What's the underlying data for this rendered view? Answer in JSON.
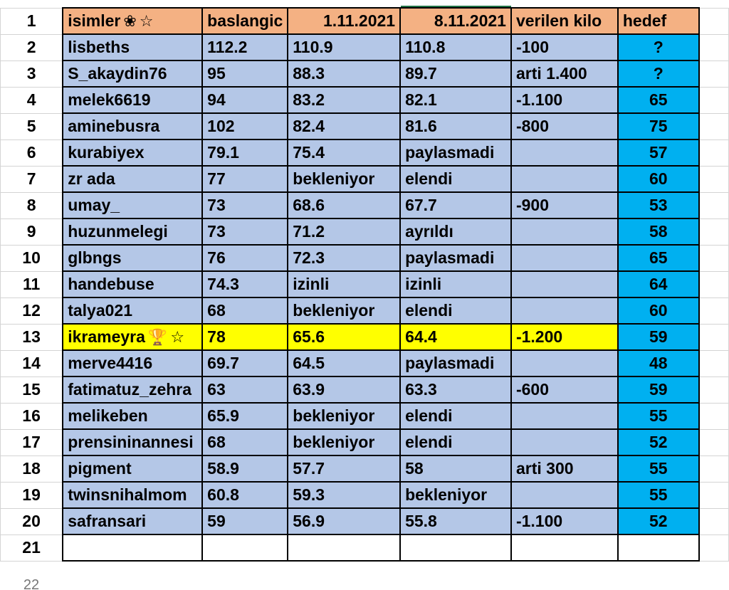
{
  "headers": {
    "names": "isimler",
    "names_icons": [
      "flower-icon",
      "star-icon"
    ],
    "start": "baslangic",
    "date1": "1.11.2021",
    "date2": "8.11.2021",
    "lost": "verilen kilo",
    "goal": "hedef"
  },
  "glyphs": {
    "flower": "❀",
    "star": "☆",
    "trophy": "🏆"
  },
  "rows": [
    {
      "name": "lisbeths",
      "start": "112.2",
      "d1": "110.9",
      "d2": "110.8",
      "lost": "-100",
      "goal": "?"
    },
    {
      "name": "S_akaydin76",
      "start": "95",
      "d1": "88.3",
      "d2": "89.7",
      "lost": "arti 1.400",
      "goal": "?"
    },
    {
      "name": "melek6619",
      "start": "94",
      "d1": "83.2",
      "d2": "82.1",
      "lost": "-1.100",
      "goal": "65"
    },
    {
      "name": "aminebusra",
      "start": "102",
      "d1": "82.4",
      "d2": "81.6",
      "lost": "-800",
      "goal": "75"
    },
    {
      "name": "kurabiyex",
      "start": "79.1",
      "d1": "75.4",
      "d2": "paylasmadi",
      "lost": "",
      "goal": "57"
    },
    {
      "name": "zr ada",
      "start": "77",
      "d1": "bekleniyor",
      "d2": "elendi",
      "lost": "",
      "goal": "60"
    },
    {
      "name": "umay_",
      "start": "73",
      "d1": "68.6",
      "d2": "67.7",
      "lost": "-900",
      "goal": "53"
    },
    {
      "name": "huzunmelegi",
      "start": "73",
      "d1": "71.2",
      "d2": "ayrıldı",
      "lost": "",
      "goal": "58"
    },
    {
      "name": "glbngs",
      "start": "76",
      "d1": "72.3",
      "d2": "paylasmadi",
      "lost": "",
      "goal": "65"
    },
    {
      "name": "handebuse",
      "start": "74.3",
      "d1": "izinli",
      "d2": "izinli",
      "lost": "",
      "goal": "64"
    },
    {
      "name": "talya021",
      "start": "68",
      "d1": "bekleniyor",
      "d2": "elendi",
      "lost": "",
      "goal": "60"
    },
    {
      "name": "ikrameyra",
      "start": "78",
      "d1": "65.6",
      "d2": "64.4",
      "lost": "-1.200",
      "goal": "59",
      "highlight": true,
      "icons": [
        "trophy-icon",
        "star-icon"
      ]
    },
    {
      "name": "merve4416",
      "start": "69.7",
      "d1": "64.5",
      "d2": "paylasmadi",
      "lost": "",
      "goal": "48"
    },
    {
      "name": "fatimatuz_zehra",
      "start": "63",
      "d1": "63.9",
      "d2": "63.3",
      "lost": "-600",
      "goal": "59"
    },
    {
      "name": "melikeben",
      "start": "65.9",
      "d1": "bekleniyor",
      "d2": "elendi",
      "lost": "",
      "goal": "55"
    },
    {
      "name": "prensininannesi",
      "start": "68",
      "d1": "bekleniyor",
      "d2": "elendi",
      "lost": "",
      "goal": "52"
    },
    {
      "name": "pigment",
      "start": "58.9",
      "d1": "57.7",
      "d2": "58",
      "lost": "arti 300",
      "goal": "55"
    },
    {
      "name": "twinsnihalmom",
      "start": "60.8",
      "d1": "59.3",
      "d2": "bekleniyor",
      "lost": "",
      "goal": "55"
    },
    {
      "name": "safransari",
      "start": "59",
      "d1": "56.9",
      "d2": "55.8",
      "lost": "-1.100",
      "goal": "52"
    }
  ],
  "row_numbers": [
    "1",
    "2",
    "3",
    "4",
    "5",
    "6",
    "7",
    "8",
    "9",
    "10",
    "11",
    "12",
    "13",
    "14",
    "15",
    "16",
    "17",
    "18",
    "19",
    "20",
    "21",
    "22"
  ],
  "colors": {
    "header_bg": "#f4b183",
    "row_bg": "#b4c7e7",
    "highlight_bg": "#ffff00",
    "goal_bg": "#00b0f0",
    "selection": "#217346"
  }
}
